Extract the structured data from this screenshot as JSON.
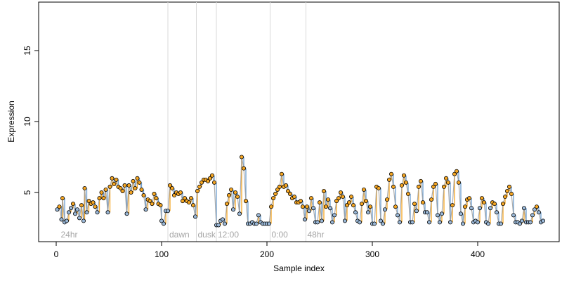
{
  "chart_data": {
    "type": "scatter",
    "title": "",
    "xlabel": "Sample index",
    "ylabel": "Expression",
    "xlim": [
      0,
      480
    ],
    "ylim": [
      1.5,
      18.8
    ],
    "x_ticks": [
      0,
      100,
      200,
      300,
      400
    ],
    "y_ticks": [
      5,
      10,
      15
    ],
    "grid": false,
    "legend": "none",
    "colors": {
      "point_edge": "#000000",
      "point_fill_high": "#f5a623",
      "point_fill_low": "#9ab8d8",
      "segment_up": "#f5a623",
      "segment_down": "#6d9fd0",
      "trend": "#9e9e9e",
      "marker_line": "#d9d9d9",
      "annotation": "#a6a6a6"
    },
    "annotations": [
      {
        "label": "24hr",
        "x": 3
      },
      {
        "label": "dawn",
        "x": 106
      },
      {
        "label": "dusk",
        "x": 133
      },
      {
        "label": "12:00",
        "x": 152
      },
      {
        "label": "0:00",
        "x": 203
      },
      {
        "label": "48hr",
        "x": 237
      }
    ],
    "marker_lines": [
      106,
      133,
      152,
      203,
      237
    ],
    "series": [
      {
        "points": [
          [
            1,
            3.8
          ],
          [
            3,
            4.0
          ],
          [
            5,
            3.1
          ],
          [
            6,
            4.6
          ],
          [
            8,
            2.9
          ],
          [
            10,
            3.0
          ],
          [
            12,
            3.6
          ],
          [
            14,
            3.9
          ],
          [
            16,
            4.2
          ],
          [
            18,
            3.5
          ],
          [
            20,
            3.8
          ],
          [
            22,
            3.2
          ],
          [
            24,
            4.1
          ],
          [
            26,
            3.0
          ],
          [
            27,
            5.3
          ],
          [
            29,
            3.6
          ],
          [
            31,
            4.4
          ],
          [
            33,
            4.2
          ],
          [
            35,
            4.3
          ],
          [
            37,
            4.0
          ],
          [
            39,
            3.6
          ],
          [
            41,
            4.6
          ],
          [
            43,
            5.0
          ],
          [
            45,
            4.6
          ],
          [
            47,
            5.2
          ],
          [
            49,
            3.6
          ],
          [
            51,
            5.4
          ],
          [
            53,
            6.0
          ],
          [
            55,
            5.6
          ],
          [
            57,
            5.9
          ],
          [
            59,
            5.4
          ],
          [
            61,
            5.3
          ],
          [
            63,
            5.1
          ],
          [
            65,
            5.5
          ],
          [
            67,
            3.5
          ],
          [
            69,
            5.5
          ],
          [
            71,
            5.0
          ],
          [
            73,
            5.8
          ],
          [
            75,
            5.3
          ],
          [
            77,
            6.0
          ],
          [
            79,
            5.7
          ],
          [
            81,
            5.2
          ],
          [
            83,
            4.8
          ],
          [
            85,
            3.8
          ],
          [
            87,
            4.5
          ],
          [
            89,
            4.4
          ],
          [
            91,
            4.2
          ],
          [
            93,
            4.9
          ],
          [
            95,
            4.6
          ],
          [
            97,
            4.2
          ],
          [
            99,
            4.1
          ],
          [
            100,
            3.0
          ],
          [
            102,
            2.8
          ],
          [
            104,
            3.7
          ],
          [
            106,
            3.7
          ],
          [
            108,
            5.5
          ],
          [
            110,
            5.3
          ],
          [
            112,
            4.8
          ],
          [
            114,
            5.0
          ],
          [
            116,
            4.9
          ],
          [
            118,
            5.0
          ],
          [
            120,
            4.4
          ],
          [
            122,
            4.6
          ],
          [
            124,
            4.4
          ],
          [
            126,
            4.3
          ],
          [
            128,
            4.6
          ],
          [
            130,
            4.1
          ],
          [
            132,
            3.3
          ],
          [
            134,
            5.1
          ],
          [
            136,
            5.4
          ],
          [
            138,
            5.7
          ],
          [
            140,
            5.9
          ],
          [
            142,
            5.9
          ],
          [
            144,
            5.8
          ],
          [
            146,
            6.0
          ],
          [
            148,
            6.2
          ],
          [
            150,
            5.7
          ],
          [
            152,
            2.7
          ],
          [
            154,
            2.7
          ],
          [
            156,
            3.0
          ],
          [
            158,
            3.1
          ],
          [
            160,
            2.8
          ],
          [
            162,
            4.2
          ],
          [
            164,
            4.8
          ],
          [
            166,
            5.2
          ],
          [
            168,
            3.8
          ],
          [
            170,
            5.0
          ],
          [
            172,
            4.7
          ],
          [
            174,
            3.5
          ],
          [
            176,
            7.5
          ],
          [
            178,
            6.7
          ],
          [
            180,
            4.4
          ],
          [
            182,
            2.8
          ],
          [
            184,
            2.8
          ],
          [
            186,
            2.9
          ],
          [
            188,
            2.8
          ],
          [
            190,
            2.8
          ],
          [
            192,
            3.4
          ],
          [
            194,
            2.9
          ],
          [
            196,
            2.8
          ],
          [
            198,
            2.8
          ],
          [
            200,
            2.8
          ],
          [
            202,
            2.8
          ],
          [
            204,
            4.0
          ],
          [
            206,
            4.6
          ],
          [
            208,
            4.9
          ],
          [
            210,
            5.2
          ],
          [
            212,
            5.4
          ],
          [
            214,
            6.3
          ],
          [
            216,
            5.4
          ],
          [
            218,
            5.5
          ],
          [
            220,
            5.1
          ],
          [
            222,
            4.9
          ],
          [
            224,
            4.6
          ],
          [
            226,
            4.7
          ],
          [
            228,
            4.3
          ],
          [
            230,
            4.3
          ],
          [
            232,
            4.4
          ],
          [
            234,
            4.0
          ],
          [
            236,
            3.1
          ],
          [
            238,
            4.0
          ],
          [
            240,
            3.7
          ],
          [
            242,
            4.6
          ],
          [
            244,
            3.9
          ],
          [
            246,
            2.9
          ],
          [
            248,
            2.9
          ],
          [
            250,
            4.3
          ],
          [
            252,
            3.0
          ],
          [
            254,
            5.1
          ],
          [
            256,
            4.0
          ],
          [
            258,
            4.5
          ],
          [
            260,
            3.9
          ],
          [
            262,
            2.9
          ],
          [
            264,
            3.4
          ],
          [
            266,
            4.4
          ],
          [
            268,
            4.6
          ],
          [
            270,
            5.0
          ],
          [
            272,
            4.7
          ],
          [
            274,
            3.0
          ],
          [
            276,
            4.1
          ],
          [
            278,
            4.3
          ],
          [
            280,
            4.7
          ],
          [
            282,
            4.1
          ],
          [
            284,
            3.6
          ],
          [
            286,
            3.0
          ],
          [
            288,
            2.9
          ],
          [
            290,
            4.2
          ],
          [
            292,
            5.2
          ],
          [
            294,
            4.4
          ],
          [
            296,
            3.6
          ],
          [
            298,
            4.0
          ],
          [
            300,
            2.8
          ],
          [
            302,
            2.8
          ],
          [
            304,
            5.4
          ],
          [
            306,
            5.3
          ],
          [
            308,
            3.0
          ],
          [
            310,
            2.8
          ],
          [
            312,
            3.8
          ],
          [
            314,
            4.5
          ],
          [
            316,
            5.9
          ],
          [
            318,
            6.3
          ],
          [
            320,
            5.4
          ],
          [
            322,
            4.0
          ],
          [
            324,
            3.4
          ],
          [
            326,
            2.9
          ],
          [
            328,
            5.5
          ],
          [
            330,
            6.2
          ],
          [
            332,
            5.7
          ],
          [
            334,
            4.9
          ],
          [
            336,
            2.9
          ],
          [
            338,
            2.9
          ],
          [
            340,
            4.2
          ],
          [
            342,
            3.7
          ],
          [
            344,
            5.4
          ],
          [
            346,
            5.8
          ],
          [
            348,
            4.3
          ],
          [
            350,
            3.6
          ],
          [
            352,
            3.6
          ],
          [
            354,
            2.9
          ],
          [
            356,
            4.5
          ],
          [
            358,
            5.4
          ],
          [
            360,
            5.6
          ],
          [
            362,
            3.4
          ],
          [
            364,
            2.9
          ],
          [
            366,
            3.5
          ],
          [
            368,
            5.4
          ],
          [
            370,
            6.0
          ],
          [
            372,
            5.7
          ],
          [
            374,
            2.9
          ],
          [
            376,
            4.1
          ],
          [
            378,
            6.3
          ],
          [
            380,
            6.5
          ],
          [
            382,
            5.7
          ],
          [
            384,
            3.5
          ],
          [
            386,
            2.8
          ],
          [
            388,
            4.0
          ],
          [
            390,
            4.5
          ],
          [
            392,
            4.6
          ],
          [
            394,
            3.9
          ],
          [
            396,
            2.9
          ],
          [
            398,
            3.0
          ],
          [
            400,
            2.9
          ],
          [
            402,
            3.9
          ],
          [
            404,
            4.6
          ],
          [
            406,
            4.3
          ],
          [
            408,
            2.9
          ],
          [
            410,
            2.8
          ],
          [
            412,
            3.9
          ],
          [
            414,
            4.3
          ],
          [
            416,
            4.2
          ],
          [
            418,
            3.6
          ],
          [
            420,
            2.8
          ],
          [
            422,
            2.8
          ],
          [
            424,
            4.2
          ],
          [
            426,
            4.7
          ],
          [
            428,
            5.1
          ],
          [
            430,
            5.4
          ],
          [
            432,
            4.9
          ],
          [
            434,
            3.4
          ],
          [
            436,
            2.9
          ],
          [
            438,
            2.9
          ],
          [
            440,
            2.8
          ],
          [
            442,
            3.0
          ],
          [
            444,
            3.9
          ],
          [
            446,
            2.9
          ],
          [
            448,
            2.9
          ],
          [
            450,
            2.9
          ],
          [
            452,
            3.4
          ],
          [
            454,
            3.8
          ],
          [
            456,
            4.0
          ],
          [
            458,
            3.6
          ],
          [
            460,
            2.9
          ],
          [
            462,
            3.0
          ]
        ]
      }
    ]
  }
}
